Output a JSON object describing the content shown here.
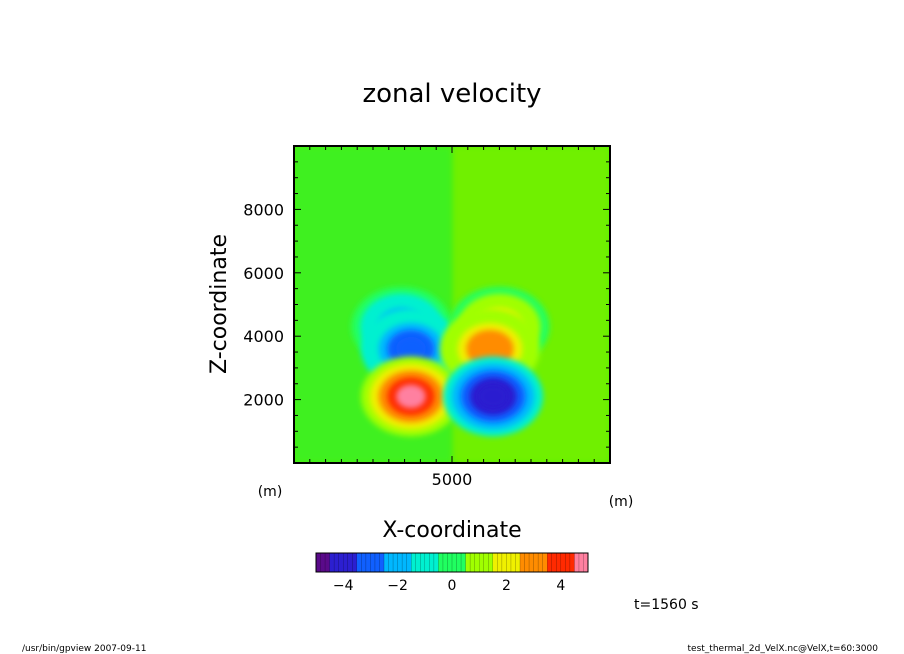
{
  "chart_data": {
    "type": "heatmap",
    "title": "zonal velocity",
    "xlabel": "X-coordinate",
    "ylabel": "Z-coordinate",
    "x_unit": "(m)",
    "y_unit": "(m)",
    "xlim": [
      0,
      10000
    ],
    "ylim": [
      0,
      10000
    ],
    "x_ticks": [
      5000
    ],
    "y_ticks": [
      2000,
      4000,
      6000,
      8000
    ],
    "features": [
      {
        "x": 3400,
        "z": 4300,
        "value": -2.2
      },
      {
        "x": 3700,
        "z": 3600,
        "value": -3.2
      },
      {
        "x": 6500,
        "z": 4300,
        "value": 2.2
      },
      {
        "x": 6200,
        "z": 3600,
        "value": 3.2
      },
      {
        "x": 3700,
        "z": 2100,
        "value": 4.5
      },
      {
        "x": 6300,
        "z": 2100,
        "value": -4.5
      }
    ],
    "colorbar": {
      "min": -5,
      "max": 5,
      "ticks": [
        -4,
        -2,
        0,
        2,
        4
      ],
      "colors": [
        "#5a0a8a",
        "#2c1fd0",
        "#1060ff",
        "#00b7ff",
        "#00f0d0",
        "#20ff60",
        "#a0ff00",
        "#f0f000",
        "#ff8c00",
        "#ff2a00",
        "#ff80a0"
      ]
    },
    "annotation": "t=1560 s"
  },
  "footer": {
    "left": "/usr/bin/gpview  2007-09-11",
    "right": "test_thermal_2d_VelX.nc@VelX,t=60:3000"
  }
}
